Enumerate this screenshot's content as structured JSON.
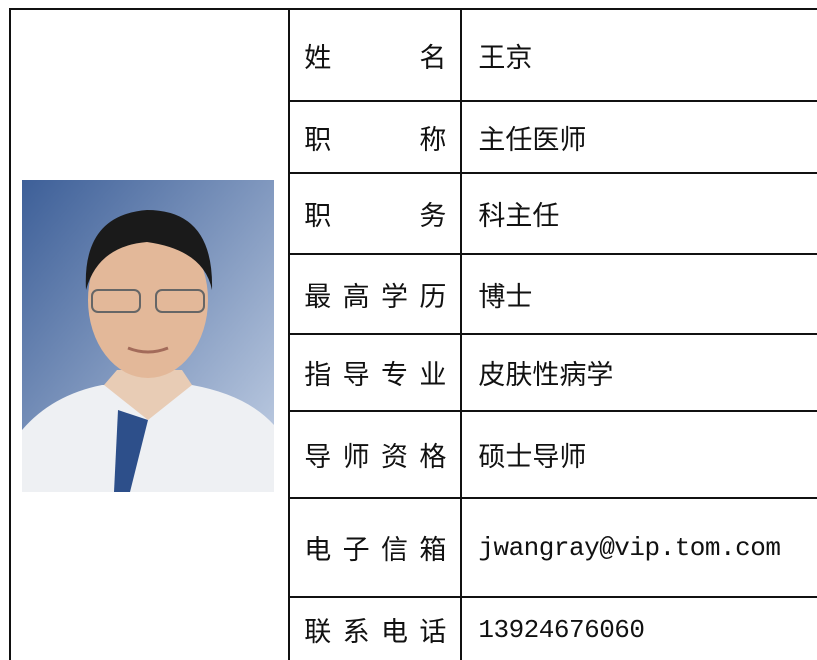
{
  "rows": [
    {
      "label": "姓名",
      "value": "王京"
    },
    {
      "label": "职称",
      "value": "主任医师"
    },
    {
      "label": "职务",
      "value": "科主任"
    },
    {
      "label": "最高学历",
      "value": "博士"
    },
    {
      "label": "指导专业",
      "value": "皮肤性病学"
    },
    {
      "label": "导师资格",
      "value": "硕士导师"
    },
    {
      "label": "电子信箱",
      "value": "jwangray@vip.tom.com"
    },
    {
      "label": "联系电话",
      "value": "13924676060"
    }
  ]
}
